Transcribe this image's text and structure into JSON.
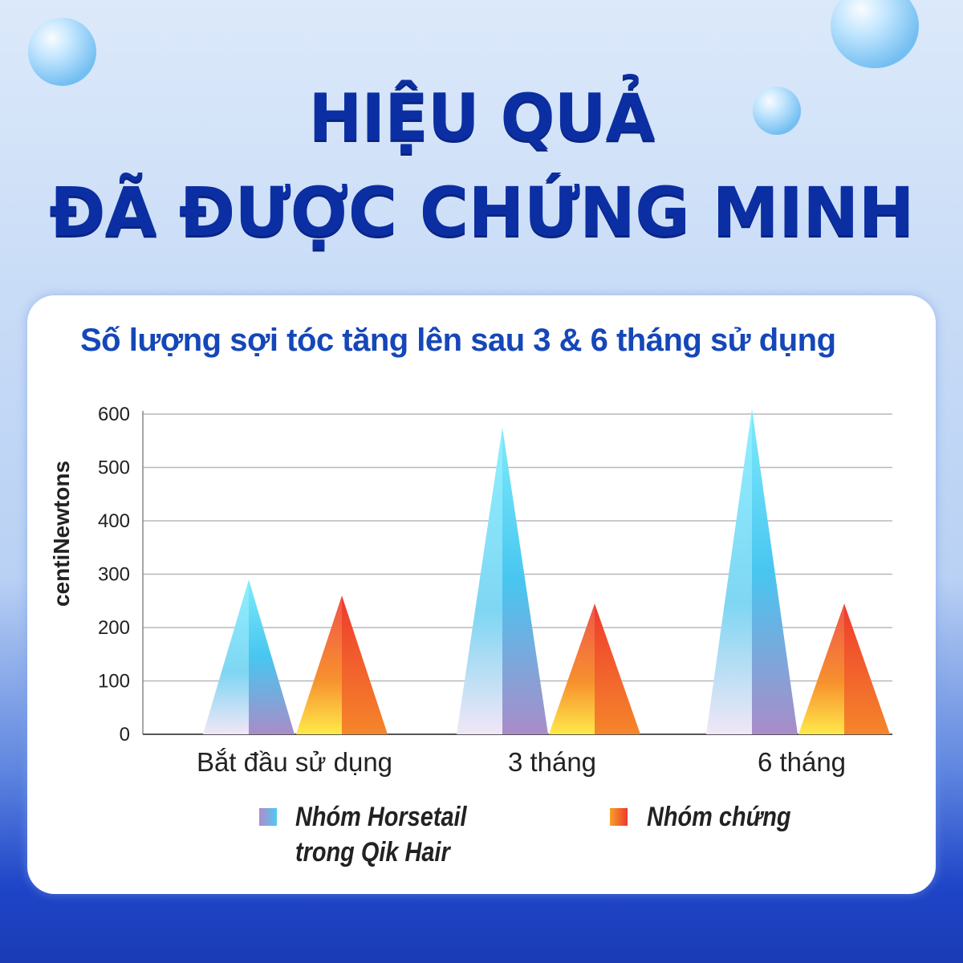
{
  "title_line1": "HIỆU QUẢ",
  "title_line2": "ĐÃ ĐƯỢC CHỨNG MINH",
  "chart_data": {
    "type": "bar",
    "title": "Số lượng sợi tóc tăng lên sau 3 & 6 tháng sử dụng",
    "ylabel": "centiNewtons",
    "xlabel": "",
    "ylim": [
      0,
      600
    ],
    "yticks": [
      "0",
      "100",
      "200",
      "300",
      "400",
      "500",
      "600"
    ],
    "grid": true,
    "categories": [
      "Bắt đầu sử dụng",
      "3 tháng",
      "6 tháng"
    ],
    "series": [
      {
        "name": "Nhóm Horsetail trong Qik Hair",
        "name_line1": "Nhóm Horsetail",
        "name_line2": "trong Qik Hair",
        "values": [
          290,
          575,
          610
        ],
        "color": "#4ec9f2"
      },
      {
        "name": "Nhóm chứng",
        "values": [
          260,
          245,
          245
        ],
        "color": "#f0502e"
      }
    ],
    "legend": "bottom"
  }
}
